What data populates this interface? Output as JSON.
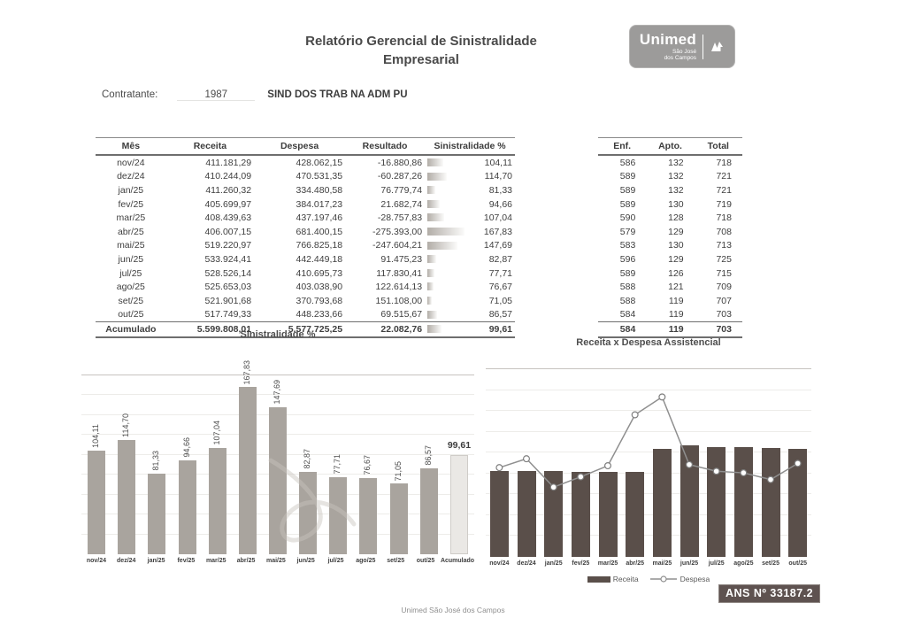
{
  "header": {
    "title_line1": "Relatório Gerencial de Sinistralidade",
    "title_line2": "Empresarial",
    "logo": {
      "brand": "Unimed",
      "region_line1": "São José",
      "region_line2": "dos Campos"
    }
  },
  "contratante": {
    "label": "Contratante:",
    "code": "1987",
    "name": "SIND DOS TRAB NA ADM PU"
  },
  "main_table": {
    "columns": [
      "Mês",
      "Receita",
      "Despesa",
      "Resultado",
      "Sinistralidade %"
    ],
    "rows": [
      [
        "nov/24",
        "411.181,29",
        "428.062,15",
        "-16.880,86",
        "104,11"
      ],
      [
        "dez/24",
        "410.244,09",
        "470.531,35",
        "-60.287,26",
        "114,70"
      ],
      [
        "jan/25",
        "411.260,32",
        "334.480,58",
        "76.779,74",
        "81,33"
      ],
      [
        "fev/25",
        "405.699,97",
        "384.017,23",
        "21.682,74",
        "94,66"
      ],
      [
        "mar/25",
        "408.439,63",
        "437.197,46",
        "-28.757,83",
        "107,04"
      ],
      [
        "abr/25",
        "406.007,15",
        "681.400,15",
        "-275.393,00",
        "167,83"
      ],
      [
        "mai/25",
        "519.220,97",
        "766.825,18",
        "-247.604,21",
        "147,69"
      ],
      [
        "jun/25",
        "533.924,41",
        "442.449,18",
        "91.475,23",
        "82,87"
      ],
      [
        "jul/25",
        "528.526,14",
        "410.695,73",
        "117.830,41",
        "77,71"
      ],
      [
        "ago/25",
        "525.653,03",
        "403.038,90",
        "122.614,13",
        "76,67"
      ],
      [
        "set/25",
        "521.901,68",
        "370.793,68",
        "151.108,00",
        "71,05"
      ],
      [
        "out/25",
        "517.749,33",
        "448.233,66",
        "69.515,67",
        "86,57"
      ]
    ],
    "sinistralidade_values": [
      104.11,
      114.7,
      81.33,
      94.66,
      107.04,
      167.83,
      147.69,
      82.87,
      77.71,
      76.67,
      71.05,
      86.57
    ],
    "total_row": [
      "Acumulado",
      "5.599.808,01",
      "5.577.725,25",
      "22.082,76",
      "99,61"
    ],
    "total_sinistralidade_value": 99.61
  },
  "occupancy_table": {
    "columns": [
      "Enf.",
      "Apto.",
      "Total"
    ],
    "rows": [
      [
        "586",
        "132",
        "718"
      ],
      [
        "589",
        "132",
        "721"
      ],
      [
        "589",
        "132",
        "721"
      ],
      [
        "589",
        "130",
        "719"
      ],
      [
        "590",
        "128",
        "718"
      ],
      [
        "579",
        "129",
        "708"
      ],
      [
        "583",
        "130",
        "713"
      ],
      [
        "596",
        "129",
        "725"
      ],
      [
        "589",
        "126",
        "715"
      ],
      [
        "588",
        "121",
        "709"
      ],
      [
        "588",
        "119",
        "707"
      ],
      [
        "584",
        "119",
        "703"
      ]
    ],
    "total_row": [
      "584",
      "119",
      "703"
    ]
  },
  "chart_data": [
    {
      "type": "bar",
      "title": "Sinistralidade %",
      "categories": [
        "nov/24",
        "dez/24",
        "jan/25",
        "fev/25",
        "mar/25",
        "abr/25",
        "mai/25",
        "jun/25",
        "jul/25",
        "ago/25",
        "set/25",
        "out/25",
        "Acumulado"
      ],
      "values": [
        104.11,
        114.7,
        81.33,
        94.66,
        107.04,
        167.83,
        147.69,
        82.87,
        77.71,
        76.67,
        71.05,
        86.57,
        99.61
      ],
      "labels": [
        "104,11",
        "114,70",
        "81,33",
        "94,66",
        "107,04",
        "167,83",
        "147,69",
        "82,87",
        "77,71",
        "76,67",
        "71,05",
        "86,57",
        "99,61"
      ],
      "xlabel": "",
      "ylabel": "",
      "ylim": [
        0,
        180
      ],
      "grid_step": 20,
      "grid": true,
      "highlight_last_bar": true,
      "legend_position": "none"
    },
    {
      "type": "bar+line",
      "title": "Receita x Despesa Assistencial",
      "categories": [
        "nov/24",
        "dez/24",
        "jan/25",
        "fev/25",
        "mar/25",
        "abr/25",
        "mai/25",
        "jun/25",
        "jul/25",
        "ago/25",
        "set/25",
        "out/25"
      ],
      "series": [
        {
          "name": "Receita",
          "type": "bar",
          "values": [
            411181.29,
            410244.09,
            411260.32,
            405699.97,
            408439.63,
            406007.15,
            519220.97,
            533924.41,
            528526.14,
            525653.03,
            521901.68,
            517749.33
          ]
        },
        {
          "name": "Despesa",
          "type": "line",
          "values": [
            428062.15,
            470531.35,
            334480.58,
            384017.23,
            437197.46,
            681400.15,
            766825.18,
            442449.18,
            410695.73,
            403038.9,
            370793.68,
            448233.66
          ]
        }
      ],
      "xlabel": "",
      "ylabel": "",
      "ylim": [
        0,
        900000
      ],
      "grid_step": 100000,
      "grid": true,
      "legend_position": "bottom"
    }
  ],
  "ans_badge": "ANS Nº 33187.2",
  "footer": "Unimed São José dos Campos",
  "colors": {
    "bar_gray": "#a9a49e",
    "bar_light": "#eae8e5",
    "bar_dark": "#5a4f4a",
    "line": "#8f8f8f",
    "grid_major": "#c6c3bf",
    "grid_minor": "#edece9",
    "badge_bg": "#5e5250"
  }
}
